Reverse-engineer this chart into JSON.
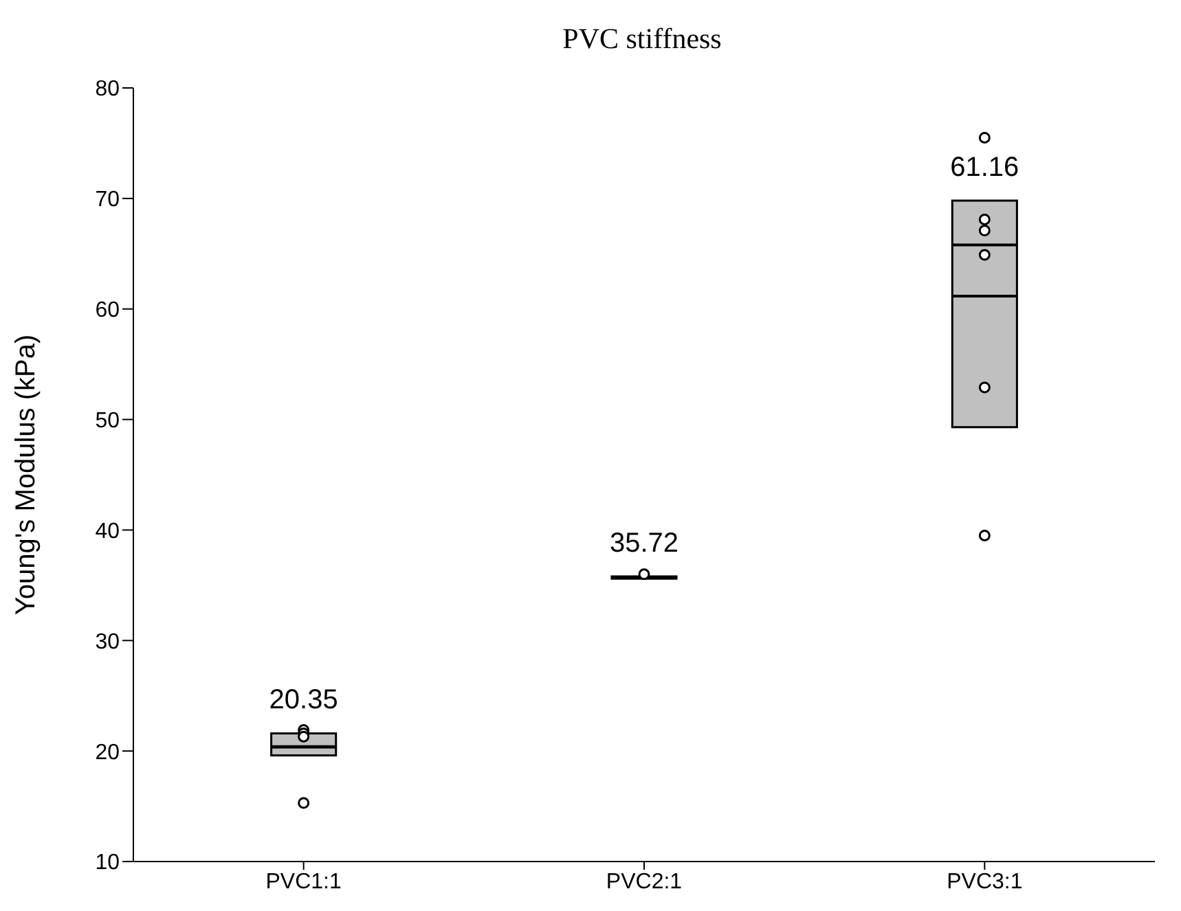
{
  "chart_data": {
    "type": "box",
    "title": "PVC stiffness",
    "ylabel": "Young's Modulus (kPa)",
    "categories": [
      "PVC1:1",
      "PVC2:1",
      "PVC3:1"
    ],
    "boxes": [
      {
        "low": 19.6,
        "q1": 19.6,
        "median": 20.4,
        "q3": 21.6,
        "high": 21.6,
        "mean": 20.35
      },
      {
        "low": 35.6,
        "q1": 35.6,
        "median": 35.7,
        "q3": 35.8,
        "high": 35.8,
        "mean": 35.72
      },
      {
        "low": 49.3,
        "q1": 49.3,
        "median": 65.8,
        "q3": 69.8,
        "high": 69.8,
        "mean": 61.16
      }
    ],
    "color": "#c0c0c0",
    "series": [
      {
        "type": "scatter",
        "color": "#000000",
        "x": [
          "PVC1:1",
          "PVC1:1",
          "PVC1:1",
          "PVC1:1",
          "PVC2:1",
          "PVC3:1",
          "PVC3:1",
          "PVC3:1",
          "PVC3:1",
          "PVC3:1",
          "PVC3:1"
        ],
        "values": [
          21.9,
          21.6,
          21.3,
          15.3,
          36.0,
          75.5,
          68.1,
          67.1,
          64.9,
          52.9,
          39.5
        ]
      }
    ],
    "marker": "circle",
    "ylim": [
      10,
      80
    ],
    "yticks": [
      10,
      20,
      30,
      40,
      50,
      60,
      70,
      80
    ],
    "grid": false,
    "legend": false,
    "annotations": [
      "20.35",
      "35.72",
      "61.16"
    ]
  }
}
